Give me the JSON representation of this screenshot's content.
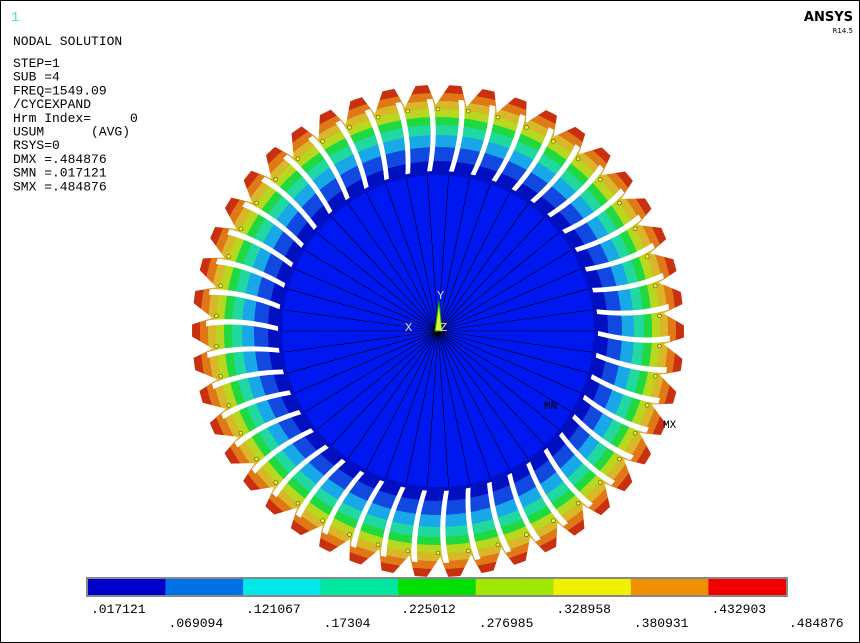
{
  "window_number": "1",
  "brand": "ANSYS",
  "version": "R14.5",
  "title": "NODAL SOLUTION",
  "info_lines": [
    "STEP=1",
    "SUB =4",
    "FREQ=1549.09",
    "/CYCEXPAND",
    "Hrm Index=     0",
    "USUM      (AVG)",
    "RSYS=0",
    "DMX =.484876",
    "SMN =.017121",
    "SMX =.484876"
  ],
  "triad": {
    "y": "Y",
    "x": "X",
    "z": "Z"
  },
  "markers": {
    "min": "MN",
    "max": "MX"
  },
  "legend_labels": [
    ".017121",
    ".069094",
    ".121067",
    ".17304",
    ".225012",
    ".276985",
    ".328958",
    ".380931",
    ".432903",
    ".484876"
  ]
}
